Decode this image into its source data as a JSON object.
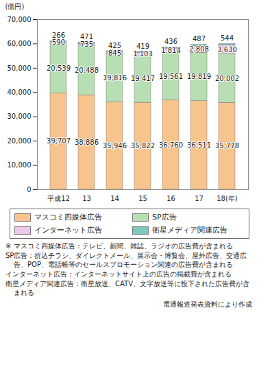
{
  "chart_data": {
    "type": "bar",
    "stacked": true,
    "data_labels": true,
    "grid": false,
    "y_label": "(億円)",
    "categories": [
      "平成12",
      "13",
      "14",
      "15",
      "16",
      "17",
      "18(年)"
    ],
    "ylim": [
      0,
      70000
    ],
    "yticks": [
      0,
      {
        "value": 10000,
        "label": "10,000"
      },
      {
        "value": 20000,
        "label": "20,000"
      },
      {
        "value": 30000,
        "label": "30,000"
      },
      {
        "value": 40000,
        "label": "40,000"
      },
      {
        "value": 50000,
        "label": "50,000"
      },
      {
        "value": 60000,
        "label": "60,000"
      },
      {
        "value": 70000,
        "label": "70,000"
      }
    ],
    "series": [
      {
        "name": "マスコミ四媒体広告",
        "color": "#f8c48e",
        "values": [
          39707,
          38886,
          35946,
          35822,
          36760,
          36511,
          35778
        ],
        "value_labels": [
          "39,707",
          "38,886",
          "35,946",
          "35,822",
          "36,760",
          "36,511",
          "35,778"
        ]
      },
      {
        "name": "SP広告",
        "color": "#b7dfb3",
        "values": [
          20539,
          20488,
          19816,
          19417,
          19561,
          19819,
          20002
        ],
        "value_labels": [
          "20,539",
          "20,488",
          "19,816",
          "19,417",
          "19,561",
          "19,819",
          "20,002"
        ]
      },
      {
        "name": "インターネット広告",
        "color": "#ecc9ec",
        "values": [
          590,
          735,
          845,
          1103,
          1814,
          2808,
          3630
        ],
        "value_labels": [
          "590",
          "735",
          "845",
          "1,103",
          "1,814",
          "2,808",
          "3,630"
        ]
      },
      {
        "name": "衛星メディア関連広告",
        "color": "#7ccabd",
        "values": [
          266,
          471,
          425,
          419,
          436,
          487,
          544
        ],
        "value_labels": [
          "266",
          "471",
          "425",
          "419",
          "436",
          "487",
          "544"
        ]
      }
    ],
    "annotations": [
      "※ マスコミ四媒体広告：テレビ、新聞、雑誌、ラジオの広告費が含まれる",
      "SP広告：折込チラシ、ダイレクトメール、展示会・博覧会、屋外広告、交通広告、POP、電話帳等のセールスプロモーション関連の広告費が含まれる",
      "インターネット広告：インターネットサイト上の広告の掲載費が含まれる",
      "衛星メディア関連広告：衛星放送、CATV、文字放送等に投下された広告費が含まれる"
    ],
    "source": "電通報道発表資料により作成"
  }
}
